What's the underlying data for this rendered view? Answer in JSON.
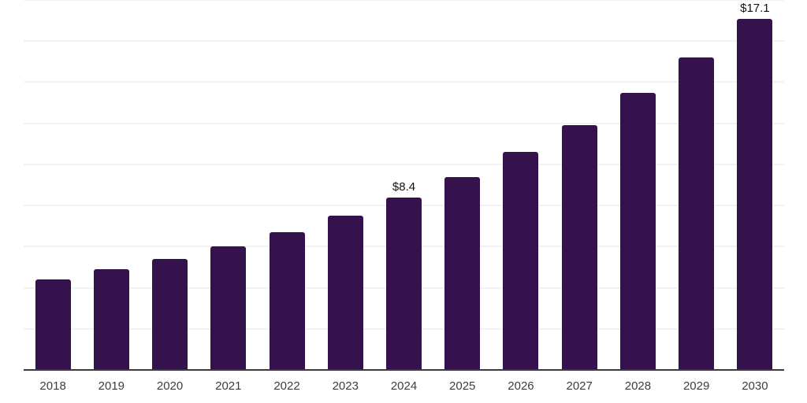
{
  "chart_data": {
    "type": "bar",
    "title": "",
    "xlabel": "",
    "ylabel": "",
    "categories": [
      "2018",
      "2019",
      "2020",
      "2021",
      "2022",
      "2023",
      "2024",
      "2025",
      "2026",
      "2027",
      "2028",
      "2029",
      "2030"
    ],
    "values": [
      4.4,
      4.9,
      5.4,
      6.0,
      6.7,
      7.5,
      8.4,
      9.4,
      10.6,
      11.9,
      13.5,
      15.2,
      17.1
    ],
    "data_labels": {
      "2024": "$8.4",
      "2030": "$17.1"
    },
    "ylim": [
      0,
      18
    ],
    "gridline_step": 2,
    "grid": "horizontal-only",
    "y_axis_labels_visible": false,
    "legend_position": "none",
    "colors": {
      "bar": "#35124E",
      "gridline": "#f2f2f2",
      "axis_line": "#3b3b3b",
      "tick_label": "#3d3d3d",
      "data_label": "#111111",
      "background": "#ffffff"
    }
  }
}
